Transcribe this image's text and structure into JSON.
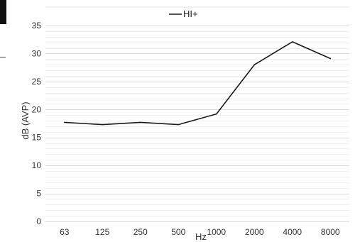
{
  "chart_data": {
    "type": "line",
    "categories": [
      "63",
      "125",
      "250",
      "500",
      "1000",
      "2000",
      "4000",
      "8000"
    ],
    "series": [
      {
        "name": "HI+",
        "values": [
          17.7,
          17.3,
          17.7,
          17.3,
          19.2,
          28.0,
          32.1,
          29.1
        ]
      }
    ],
    "ylim": [
      0,
      35
    ],
    "yticks": [
      0,
      5,
      10,
      15,
      20,
      25,
      30,
      35
    ],
    "xlabel": "Hz",
    "ylabel": "dB (AVP)",
    "grid": "horizontal major and minor",
    "legend_position": "top-center",
    "colors": {
      "series": "#1a1a1a",
      "grid_major": "#d9d9d9",
      "grid_minor": "#ededed",
      "text": "#333333"
    }
  }
}
